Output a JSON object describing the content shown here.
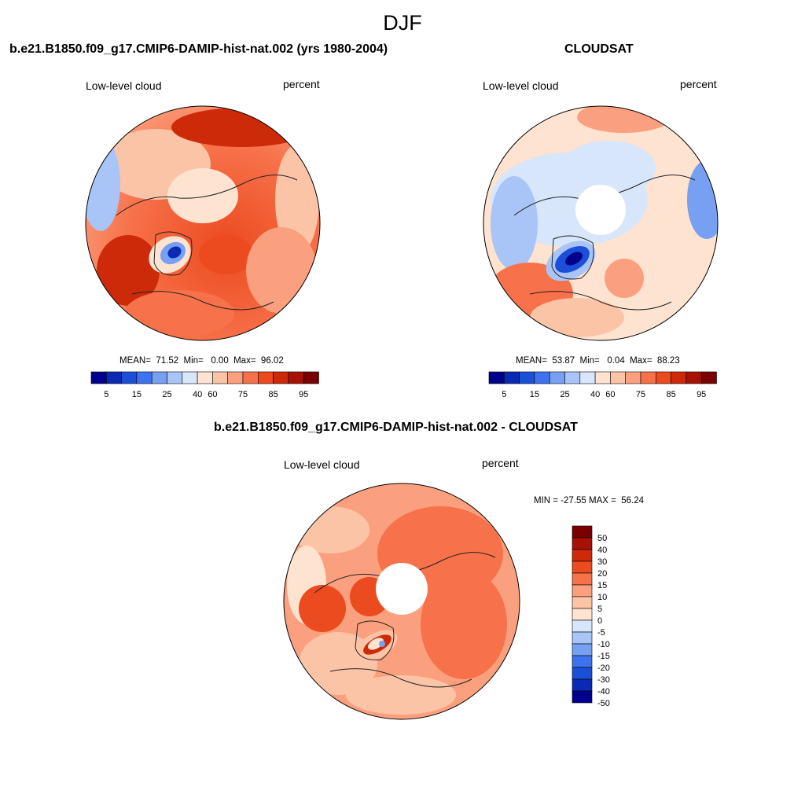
{
  "title": "DJF",
  "panels": [
    {
      "title": "b.e21.B1850.f09_g17.CMIP6-DAMIP-hist-nat.002 (yrs 1980-2004)",
      "left_label": "Low-level cloud",
      "right_label": "percent",
      "stats": "MEAN=  71.52  Min=   0.00  Max=  96.02",
      "colorbar_ticks": [
        "5",
        "15",
        "25",
        "40",
        "60",
        "75",
        "85",
        "95"
      ]
    },
    {
      "title": "CLOUDSAT",
      "left_label": "Low-level cloud",
      "right_label": "percent",
      "stats": "MEAN=  53.87  Min=   0.04  Max=  88.23",
      "colorbar_ticks": [
        "5",
        "15",
        "25",
        "40",
        "60",
        "75",
        "85",
        "95"
      ]
    },
    {
      "title": "b.e21.B1850.f09_g17.CMIP6-DAMIP-hist-nat.002 - CLOUDSAT",
      "left_label": "Low-level cloud",
      "right_label": "percent",
      "stats": "MIN = -27.55 MAX =  56.24",
      "colorbar_ticks": [
        "50",
        "40",
        "30",
        "20",
        "15",
        "10",
        "5",
        "0",
        "-5",
        "-10",
        "-15",
        "-20",
        "-30",
        "-40",
        "-50"
      ]
    }
  ],
  "colors": {
    "abs_scale": [
      "#00008c",
      "#0a2ab4",
      "#1c4fd8",
      "#3f72ee",
      "#779ff2",
      "#a9c4f6",
      "#d7e6fa",
      "#fde3d0",
      "#fcc4a7",
      "#fba07e",
      "#f7714a",
      "#ec4a1f",
      "#cc2a08",
      "#a61304",
      "#7a0000"
    ],
    "diff_scale": [
      "#7a0000",
      "#a61304",
      "#cc2a08",
      "#ec4a1f",
      "#f7714a",
      "#fba07e",
      "#fcc4a7",
      "#fde3d0",
      "#d7e6fa",
      "#a9c4f6",
      "#779ff2",
      "#3f72ee",
      "#1c4fd8",
      "#0a2ab4",
      "#00008c"
    ]
  }
}
